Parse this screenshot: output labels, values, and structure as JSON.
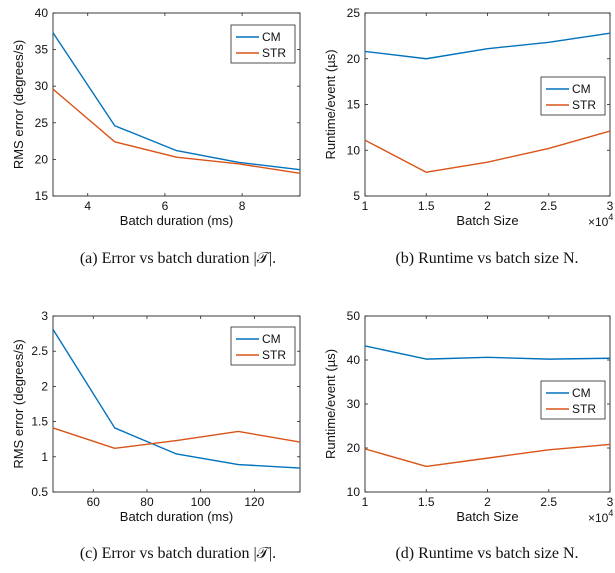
{
  "colors": {
    "CM": "#0072BD",
    "STR": "#D95319",
    "axis": "#262626",
    "text": "#111111"
  },
  "chart_data": [
    {
      "id": "a",
      "type": "line",
      "caption": "(a)  Error vs batch duration |𝒯|.",
      "xlabel": "Batch duration (ms)",
      "ylabel": "RMS error (degrees/s)",
      "xlim": [
        3.1,
        9.5
      ],
      "ylim": [
        15,
        40
      ],
      "xticks": [
        4,
        6,
        8
      ],
      "yticks": [
        15,
        20,
        25,
        30,
        35,
        40
      ],
      "legend": {
        "position": "top-right",
        "entries": [
          "CM",
          "STR"
        ]
      },
      "exponent": "",
      "grid": false,
      "series": [
        {
          "name": "CM",
          "x": [
            3.1,
            4.7,
            6.3,
            7.9,
            9.5
          ],
          "y": [
            37.3,
            24.6,
            21.2,
            19.6,
            18.6
          ]
        },
        {
          "name": "STR",
          "x": [
            3.1,
            4.7,
            6.3,
            7.9,
            9.5
          ],
          "y": [
            29.6,
            22.4,
            20.3,
            19.4,
            18.1
          ]
        }
      ]
    },
    {
      "id": "b",
      "type": "line",
      "caption": "(b)  Runtime vs batch size N.",
      "xlabel": "Batch Size",
      "ylabel": "Runtime/event (µs)",
      "xlim": [
        1,
        3
      ],
      "ylim": [
        5,
        25
      ],
      "xticks": [
        1,
        1.5,
        2,
        2.5,
        3
      ],
      "yticks": [
        5,
        10,
        15,
        20,
        25
      ],
      "legend": {
        "position": "middle-right",
        "entries": [
          "CM",
          "STR"
        ]
      },
      "exponent": "×10^4",
      "grid": false,
      "series": [
        {
          "name": "CM",
          "x": [
            1,
            1.5,
            2,
            2.5,
            3
          ],
          "y": [
            20.8,
            20.0,
            21.1,
            21.8,
            22.8
          ]
        },
        {
          "name": "STR",
          "x": [
            1,
            1.5,
            2,
            2.5,
            3
          ],
          "y": [
            11.1,
            7.6,
            8.7,
            10.2,
            12.1
          ]
        }
      ]
    },
    {
      "id": "c",
      "type": "line",
      "caption": "(c)  Error vs batch duration |𝒯|.",
      "xlabel": "Batch duration (ms)",
      "ylabel": "RMS error (degrees/s)",
      "xlim": [
        45,
        137
      ],
      "ylim": [
        0.5,
        3
      ],
      "xticks": [
        60,
        80,
        100,
        120
      ],
      "yticks": [
        0.5,
        1,
        1.5,
        2,
        2.5,
        3
      ],
      "legend": {
        "position": "top-right",
        "entries": [
          "CM",
          "STR"
        ]
      },
      "exponent": "",
      "grid": false,
      "series": [
        {
          "name": "CM",
          "x": [
            45,
            68,
            91,
            114,
            137
          ],
          "y": [
            2.81,
            1.41,
            1.04,
            0.89,
            0.84
          ]
        },
        {
          "name": "STR",
          "x": [
            45,
            68,
            91,
            114,
            137
          ],
          "y": [
            1.41,
            1.12,
            1.23,
            1.36,
            1.21
          ]
        }
      ]
    },
    {
      "id": "d",
      "type": "line",
      "caption": "(d)  Runtime vs batch size N.",
      "xlabel": "Batch Size",
      "ylabel": "Runtime/event (µs)",
      "xlim": [
        1,
        3
      ],
      "ylim": [
        10,
        50
      ],
      "xticks": [
        1,
        1.5,
        2,
        2.5,
        3
      ],
      "yticks": [
        10,
        20,
        30,
        40,
        50
      ],
      "legend": {
        "position": "middle-right",
        "entries": [
          "CM",
          "STR"
        ]
      },
      "exponent": "×10^4",
      "grid": false,
      "series": [
        {
          "name": "CM",
          "x": [
            1,
            1.5,
            2,
            2.5,
            3
          ],
          "y": [
            43.2,
            40.2,
            40.6,
            40.2,
            40.4
          ]
        },
        {
          "name": "STR",
          "x": [
            1,
            1.5,
            2,
            2.5,
            3
          ],
          "y": [
            19.8,
            15.8,
            17.7,
            19.6,
            20.8
          ]
        }
      ]
    }
  ]
}
